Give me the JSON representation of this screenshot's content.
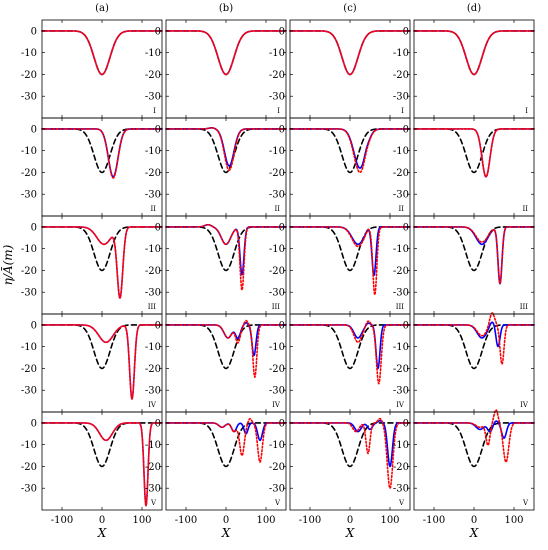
{
  "chart_data": {
    "type": "line",
    "columns": [
      "(a)",
      "(b)",
      "(c)",
      "(d)"
    ],
    "rows": [
      "I",
      "II",
      "III",
      "IV",
      "V"
    ],
    "xlabel": "X",
    "ylabel": "η/Ā(m)",
    "xlim": [
      -150,
      150
    ],
    "ylim": [
      -40,
      5
    ],
    "xticks": [
      -100,
      0,
      100
    ],
    "yticks": [
      0,
      -10,
      -20,
      -30
    ],
    "colors": {
      "dashed": "#000000",
      "solid": "#0000ff",
      "dotted": "#ff0000",
      "solid_overlap": "#8a1fb0"
    },
    "reference": [
      {
        "shape": "gaussian",
        "center": 0,
        "amplitude": -20,
        "width": 20
      }
    ],
    "panels": [
      [
        {
          "solid": [
            [
              0,
              -20,
              20
            ]
          ],
          "dotted": [
            [
              0,
              -20,
              20
            ]
          ]
        },
        {
          "solid": [
            [
              28,
              -22,
              12
            ]
          ],
          "dotted": [
            [
              28,
              -22.5,
              12
            ]
          ]
        },
        {
          "solid": [
            [
              45,
              -32,
              7
            ],
            [
              5,
              -8,
              18
            ]
          ],
          "dotted": [
            [
              45,
              -32,
              7
            ],
            [
              5,
              -8,
              18
            ]
          ]
        },
        {
          "solid": [
            [
              75,
              -34,
              6
            ],
            [
              10,
              -8,
              18
            ]
          ],
          "dotted": [
            [
              75,
              -34,
              6
            ],
            [
              10,
              -8,
              18
            ]
          ]
        },
        {
          "solid": [
            [
              110,
              -38,
              5
            ],
            [
              10,
              -8,
              16
            ]
          ],
          "dotted": [
            [
              110,
              -38,
              5
            ],
            [
              10,
              -8,
              16
            ]
          ]
        }
      ],
      [
        {
          "solid": [
            [
              0,
              -20,
              20
            ]
          ],
          "dotted": [
            [
              0,
              -20,
              20
            ]
          ]
        },
        {
          "solid": [
            [
              8,
              -17,
              12
            ],
            [
              -35,
              0.5,
              8
            ]
          ],
          "dotted": [
            [
              8,
              -19,
              12
            ],
            [
              -35,
              0.5,
              8
            ]
          ]
        },
        {
          "solid": [
            [
              40,
              -22,
              5
            ],
            [
              0,
              -8,
              12
            ],
            [
              -45,
              1,
              8
            ]
          ],
          "dotted": [
            [
              40,
              -29,
              5
            ],
            [
              0,
              -8,
              12
            ],
            [
              -45,
              1,
              8
            ]
          ]
        },
        {
          "solid": [
            [
              70,
              -14,
              5
            ],
            [
              30,
              -6,
              6
            ],
            [
              5,
              -6,
              10
            ],
            [
              50,
              1,
              4
            ]
          ],
          "dotted": [
            [
              72,
              -24,
              5
            ],
            [
              30,
              -8,
              6
            ],
            [
              5,
              -6,
              10
            ],
            [
              50,
              2,
              4
            ]
          ]
        },
        {
          "solid": [
            [
              85,
              -8,
              6
            ],
            [
              50,
              -5,
              5
            ],
            [
              20,
              -4,
              6
            ],
            [
              -10,
              -2,
              8
            ]
          ],
          "dotted": [
            [
              85,
              -18,
              6
            ],
            [
              40,
              -15,
              6
            ],
            [
              20,
              -4,
              6
            ],
            [
              -10,
              -2,
              8
            ],
            [
              60,
              2,
              4
            ]
          ]
        }
      ],
      [
        {
          "solid": [
            [
              0,
              -20,
              20
            ]
          ],
          "dotted": [
            [
              0,
              -20,
              20
            ]
          ]
        },
        {
          "solid": [
            [
              25,
              -18,
              15
            ],
            [
              40,
              1,
              5
            ]
          ],
          "dotted": [
            [
              25,
              -20,
              15
            ],
            [
              40,
              1,
              5
            ]
          ]
        },
        {
          "solid": [
            [
              20,
              -8,
              15
            ],
            [
              60,
              -22,
              5
            ],
            [
              45,
              1,
              4
            ]
          ],
          "dotted": [
            [
              20,
              -9,
              15
            ],
            [
              62,
              -31,
              5
            ],
            [
              45,
              1,
              4
            ]
          ]
        },
        {
          "solid": [
            [
              20,
              -6,
              10
            ],
            [
              70,
              -20,
              5
            ],
            [
              45,
              1,
              5
            ]
          ],
          "dotted": [
            [
              20,
              -8,
              10
            ],
            [
              72,
              -27,
              6
            ],
            [
              45,
              2,
              5
            ]
          ]
        },
        {
          "solid": [
            [
              20,
              -4,
              8
            ],
            [
              50,
              -3,
              6
            ],
            [
              100,
              -20,
              6
            ],
            [
              75,
              1,
              5
            ]
          ],
          "dotted": [
            [
              15,
              -4,
              8
            ],
            [
              45,
              -14,
              5
            ],
            [
              100,
              -30,
              7
            ],
            [
              75,
              2,
              5
            ]
          ]
        }
      ],
      [
        {
          "solid": [
            [
              0,
              -20,
              20
            ]
          ],
          "dotted": [
            [
              0,
              -20,
              20
            ]
          ]
        },
        {
          "solid": [
            [
              30,
              -22,
              10
            ]
          ],
          "dotted": [
            [
              30,
              -22,
              10
            ]
          ]
        },
        {
          "solid": [
            [
              20,
              -8,
              15
            ],
            [
              65,
              -26,
              5
            ]
          ],
          "dotted": [
            [
              20,
              -7,
              15
            ],
            [
              65,
              -26,
              5
            ]
          ]
        },
        {
          "solid": [
            [
              20,
              -6,
              12
            ],
            [
              60,
              -10,
              5
            ],
            [
              45,
              2,
              6
            ]
          ],
          "dotted": [
            [
              20,
              -5,
              12
            ],
            [
              70,
              -18,
              5
            ],
            [
              45,
              6,
              6
            ]
          ]
        },
        {
          "solid": [
            [
              15,
              -3,
              10
            ],
            [
              40,
              -4,
              6
            ],
            [
              75,
              -7,
              6
            ],
            [
              55,
              1,
              5
            ]
          ],
          "dotted": [
            [
              15,
              -2,
              10
            ],
            [
              35,
              -10,
              5
            ],
            [
              80,
              -18,
              7
            ],
            [
              55,
              6,
              5
            ]
          ]
        }
      ]
    ]
  }
}
